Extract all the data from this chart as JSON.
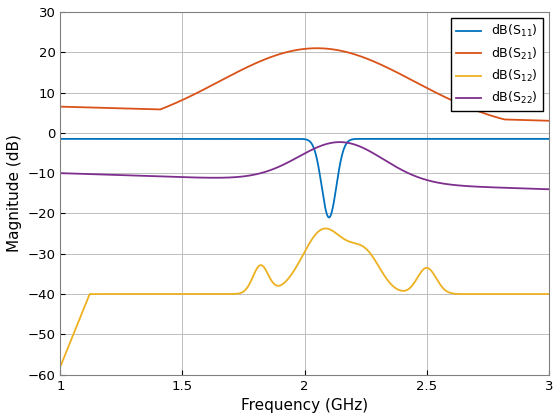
{
  "title": "",
  "xlabel": "Frequency (GHz)",
  "ylabel": "Magnitude (dB)",
  "xlim": [
    1,
    3
  ],
  "ylim": [
    -60,
    30
  ],
  "xticks": [
    1.0,
    1.5,
    2.0,
    2.5,
    3.0
  ],
  "yticks": [
    -60,
    -50,
    -40,
    -30,
    -20,
    -10,
    0,
    10,
    20,
    30
  ],
  "colors": {
    "S11": "#0072BD",
    "S21": "#D95319",
    "S12": "#EDB120",
    "S22": "#7E2F8E"
  },
  "background": "#ffffff",
  "grid_color": "#b4b4b4"
}
